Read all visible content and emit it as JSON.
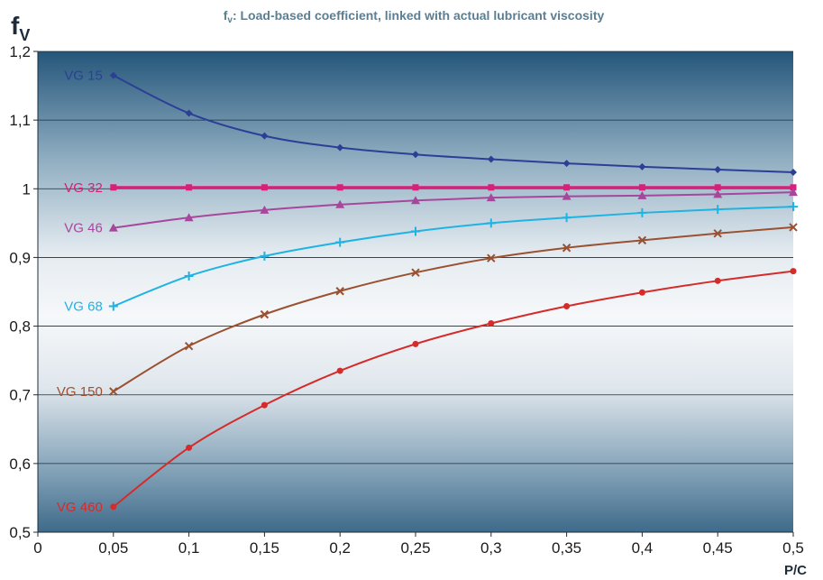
{
  "chart_data": {
    "type": "line",
    "title": "f",
    "title_sub": "v",
    "title_rest": ": Load-based coefficient, linked with actual lubricant viscosity",
    "ylabel": "f",
    "ylabel_sub": "V",
    "xlabel": "P/C",
    "x": [
      0.05,
      0.1,
      0.15,
      0.2,
      0.25,
      0.3,
      0.35,
      0.4,
      0.45,
      0.5
    ],
    "xlim": [
      0,
      0.5
    ],
    "ylim": [
      0.5,
      1.2
    ],
    "x_ticks": [
      0,
      0.05,
      0.1,
      0.15,
      0.2,
      0.25,
      0.3,
      0.35,
      0.4,
      0.45,
      0.5
    ],
    "x_tick_labels": [
      "0",
      "0,05",
      "0,1",
      "0,15",
      "0,2",
      "0,25",
      "0,3",
      "0,35",
      "0,4",
      "0,45",
      "0,5"
    ],
    "y_ticks": [
      0.5,
      0.6,
      0.7,
      0.8,
      0.9,
      1.0,
      1.1,
      1.2
    ],
    "y_tick_labels": [
      "0,5",
      "0,6",
      "0,7",
      "0,8",
      "0,9",
      "1",
      "1,1",
      "1,2"
    ],
    "grid": "horizontal",
    "legend": "labels at left end of each line",
    "series": [
      {
        "name": "VG 15",
        "color": "#2b3f96",
        "marker": "diamond",
        "values": [
          1.165,
          1.11,
          1.077,
          1.06,
          1.05,
          1.043,
          1.037,
          1.032,
          1.028,
          1.024
        ]
      },
      {
        "name": "VG 32",
        "color": "#d6207a",
        "marker": "square",
        "values": [
          1.002,
          1.002,
          1.002,
          1.002,
          1.002,
          1.002,
          1.002,
          1.002,
          1.002,
          1.002
        ]
      },
      {
        "name": "VG 46",
        "color": "#a6479c",
        "marker": "triangle",
        "values": [
          0.943,
          0.958,
          0.969,
          0.977,
          0.983,
          0.987,
          0.989,
          0.99,
          0.992,
          0.995
        ]
      },
      {
        "name": "VG 68",
        "color": "#1fb3e3",
        "marker": "plus",
        "values": [
          0.829,
          0.873,
          0.902,
          0.922,
          0.938,
          0.95,
          0.958,
          0.965,
          0.97,
          0.974
        ]
      },
      {
        "name": "VG 150",
        "color": "#9a5132",
        "marker": "cross",
        "values": [
          0.705,
          0.771,
          0.817,
          0.851,
          0.878,
          0.899,
          0.914,
          0.925,
          0.935,
          0.944
        ]
      },
      {
        "name": "VG 460",
        "color": "#d42b2b",
        "marker": "circle",
        "values": [
          0.537,
          0.623,
          0.685,
          0.735,
          0.774,
          0.804,
          0.829,
          0.849,
          0.866,
          0.88
        ]
      }
    ]
  }
}
